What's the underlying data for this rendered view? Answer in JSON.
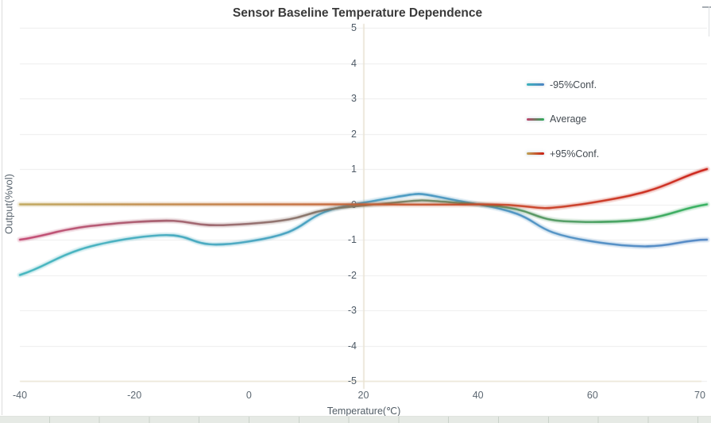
{
  "chart_data": {
    "type": "line",
    "title": "Sensor Baseline Temperature Dependence",
    "xlabel": "Temperature(℃)",
    "ylabel": "Output(%vol)",
    "categories": [
      "-40",
      "-20",
      "0",
      "20",
      "40",
      "60",
      "70"
    ],
    "series": [
      {
        "name": "-95%Conf.",
        "values": [
          -2,
          -0.95,
          -1.05,
          0.05,
          0,
          -1.05,
          -1
        ],
        "color_start": "#3cb3bc",
        "color_end": "#4c82c3"
      },
      {
        "name": "Average",
        "values": [
          -1,
          -0.5,
          -0.55,
          -0.03,
          0,
          -0.5,
          0
        ],
        "color_start": "#c2426d",
        "color_end": "#2bae58"
      },
      {
        "name": "+95%Conf.",
        "values": [
          0,
          0,
          0,
          0,
          0,
          0.05,
          1
        ],
        "color_start": "#bfa557",
        "color_end": "#cb1a10"
      }
    ],
    "yticks": [
      5,
      4,
      3,
      2,
      1,
      0,
      -1,
      -2,
      -3,
      -4,
      -5
    ],
    "ylim": [
      -5,
      5
    ],
    "grid": true,
    "smooth": true,
    "legend_position": "right-middle",
    "colors": {
      "gridline": "#ececec",
      "axis_line": "#e9e3d2",
      "y_tick_label": "#4e5a66",
      "x_tick_label": "#5c6771",
      "title": "#3a3a3a"
    }
  }
}
